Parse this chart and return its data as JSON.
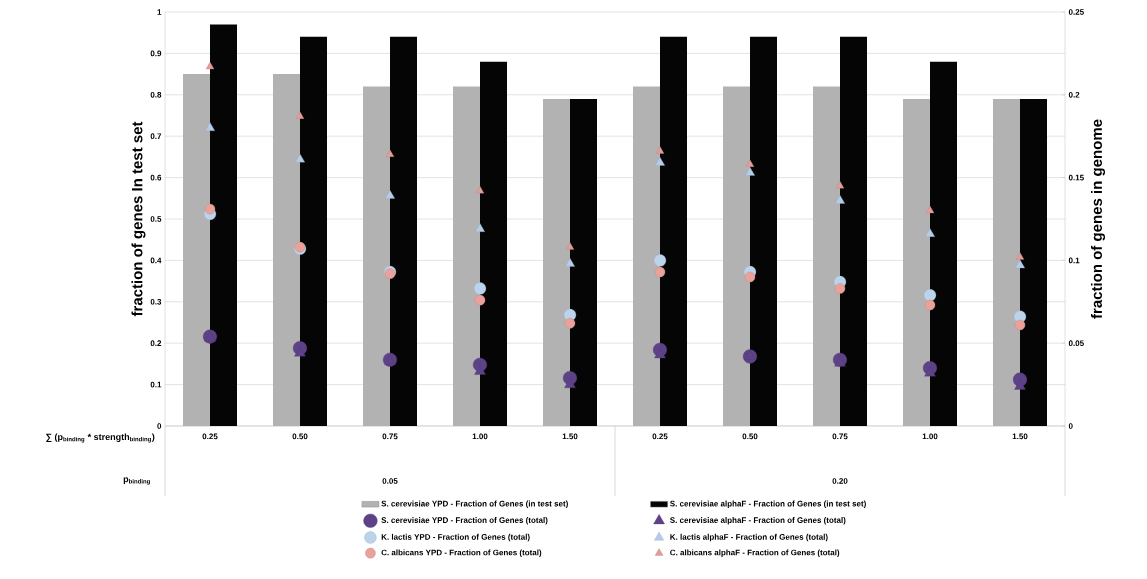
{
  "chart_data": {
    "type": "bar",
    "categories": [
      "0.25",
      "0.50",
      "0.75",
      "1.00",
      "1.50",
      "0.25",
      "0.50",
      "0.75",
      "1.00",
      "1.50"
    ],
    "ylabel": "fraction of genes In test set",
    "y2label": "fraction of genes in genome",
    "annotations": [
      "∑ (p$_{binding}$ * strength$_{binding}$)",
      "p$_{binding}$",
      "0.05",
      "0.20"
    ],
    "series": [
      {
        "name": "S. cerevisiae YPD - Fraction of Genes (in test set)",
        "color": "#b2b2b2",
        "values": [
          0.85,
          0.85,
          0.82,
          0.82,
          0.79,
          0.82,
          0.82,
          0.82,
          0.79,
          0.79
        ]
      },
      {
        "name": "S. cerevisiae alphaF - Fraction of Genes (in test set)",
        "color": "#050505",
        "values": [
          0.97,
          0.94,
          0.94,
          0.88,
          0.79,
          0.94,
          0.94,
          0.94,
          0.88,
          0.79
        ]
      },
      {
        "name": "S. cerevisiae YPD - Fraction of Genes (total)",
        "type": "scatter",
        "axis": "y2",
        "marker": "circle",
        "color": "#5e4288",
        "values": [
          0.054,
          0.047,
          0.04,
          0.037,
          0.029,
          0.046,
          0.042,
          0.04,
          0.035,
          0.028
        ]
      },
      {
        "name": "S. cerevisiae alphaF - Fraction of Genes (total)",
        "type": "scatter",
        "axis": "y2",
        "marker": "triangle",
        "color": "#5e4288",
        "values": [
          0.053,
          0.044,
          0.039,
          0.033,
          0.025,
          0.043,
          0.042,
          0.038,
          0.032,
          0.024
        ]
      },
      {
        "name": "K. lactis YPD - Fraction of Genes (total)",
        "type": "scatter",
        "axis": "y2",
        "marker": "circle",
        "color": "#bcd3ec",
        "values": [
          0.128,
          0.107,
          0.093,
          0.083,
          0.067,
          0.1,
          0.093,
          0.087,
          0.079,
          0.066
        ]
      },
      {
        "name": "K. lactis alphaF - Fraction of Genes (total)",
        "type": "scatter",
        "axis": "y2",
        "marker": "triangle",
        "color": "#b4cce8",
        "values": [
          0.18,
          0.161,
          0.139,
          0.119,
          0.098,
          0.159,
          0.153,
          0.136,
          0.116,
          0.097
        ]
      },
      {
        "name": "C. albicans YPD - Fraction of Genes (total)",
        "type": "scatter",
        "axis": "y2",
        "marker": "circle",
        "color": "#e9a19b",
        "values": [
          0.131,
          0.108,
          0.092,
          0.076,
          0.062,
          0.093,
          0.09,
          0.083,
          0.073,
          0.061
        ]
      },
      {
        "name": "C. albicans alphaF - Fraction of Genes (total)",
        "type": "scatter",
        "axis": "y2",
        "marker": "triangle",
        "color": "#e39c98",
        "values": [
          0.217,
          0.187,
          0.164,
          0.142,
          0.108,
          0.166,
          0.158,
          0.145,
          0.13,
          0.102
        ]
      }
    ],
    "ylim": [
      0,
      1
    ],
    "yticks": [
      0,
      0.1,
      0.2,
      0.3,
      0.4,
      0.5,
      0.6,
      0.7,
      0.8,
      0.9,
      1
    ],
    "y2lim": [
      0,
      0.25
    ],
    "y2ticks": [
      0,
      0.05,
      0.1,
      0.15,
      0.2,
      0.25
    ],
    "grid": "y",
    "legend": "bottom"
  }
}
